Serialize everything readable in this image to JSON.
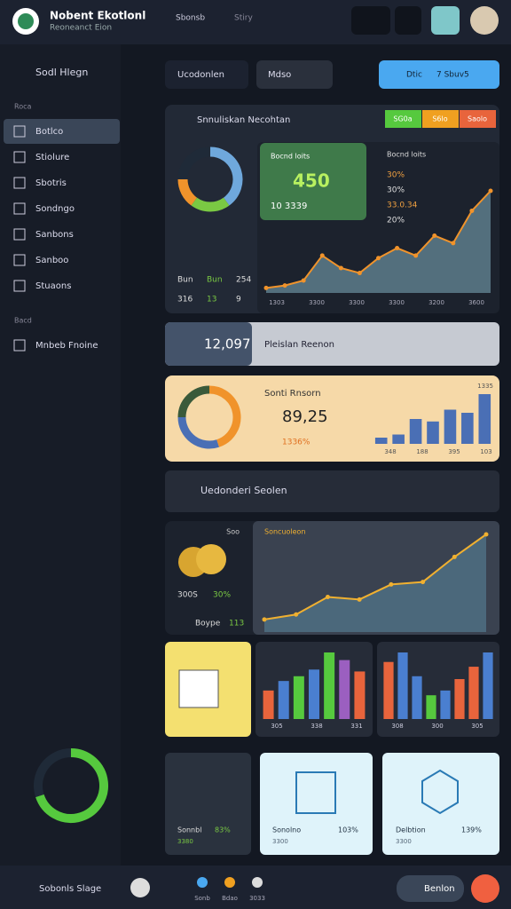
{
  "header": {
    "title": "Nobent Ekotlonl",
    "subtitle": "Reoneanct Eion",
    "nav": [
      "Sbonsb",
      "Stiry"
    ]
  },
  "sidebar": {
    "title": "Sodl Hlegn",
    "sections": [
      {
        "label": "Roca",
        "items": [
          "Botlco",
          "Stiolure",
          "Sbotris",
          "Sondngo",
          "Sanbons",
          "Sanboo",
          "Stuaons"
        ]
      },
      {
        "label": "Bacd",
        "items": [
          "Mnbeb Fnoine"
        ]
      }
    ],
    "donut": {
      "type": "pie",
      "values": [
        70,
        30
      ],
      "colors": [
        "#56c93e",
        "#1f2a38"
      ]
    }
  },
  "tabs": [
    "Ucodonlen",
    "Mdso"
  ],
  "action": [
    "Dtic",
    "7 Sbuv5"
  ],
  "overview": {
    "title": "Snnuliskan Necohtan",
    "chips": [
      "SG0a",
      "S6lo",
      "Saolo"
    ],
    "chip_colors": [
      "#56c93e",
      "#f0a020",
      "#e8643c"
    ],
    "stat": "450",
    "stat_sub": "10 3339",
    "list_title": "Bocnd loits",
    "list": [
      "30%",
      "30%",
      "33.0.34",
      "20%"
    ],
    "footer": [
      [
        "Bun",
        "Bun",
        "254"
      ],
      [
        "316",
        "13",
        "9"
      ]
    ],
    "donut": {
      "type": "pie",
      "values": [
        40,
        20,
        15,
        25
      ],
      "colors": [
        "#6fa8dc",
        "#7ac943",
        "#f0932b",
        "#1f2a38"
      ]
    },
    "chart": {
      "type": "area",
      "values": [
        4,
        6,
        10,
        30,
        20,
        16,
        28,
        36,
        30,
        46,
        40,
        66,
        82
      ],
      "color": "#f0932b",
      "fill": "#5d7d8c",
      "axis_labels": [
        "1303",
        "3300",
        "3300",
        "3300",
        "3200",
        "3600"
      ]
    }
  },
  "banner": {
    "value": "12,097",
    "label": "Pleislan Reenon"
  },
  "sales": {
    "title": "Sonti Rnsorn",
    "value": "89,25",
    "sub": "1336%",
    "corner": "1335",
    "donut": {
      "type": "pie",
      "values": [
        45,
        30,
        25
      ],
      "colors": [
        "#f0932b",
        "#4a6fb5",
        "#3a5a3a"
      ]
    },
    "bars": {
      "type": "bar",
      "values": [
        10,
        15,
        40,
        36,
        55,
        50,
        80
      ],
      "color": "#4a6fb5",
      "axis_labels": [
        "348",
        "188",
        "395",
        "103"
      ]
    }
  },
  "section": {
    "title": "Uedonderi Seolen"
  },
  "revenue": {
    "label": "Soo",
    "stats": [
      "300S",
      "30%"
    ],
    "foot": [
      "Boype",
      "113"
    ],
    "chart_title": "Soncuoleon",
    "chart": {
      "type": "area",
      "values": [
        10,
        14,
        28,
        26,
        38,
        40,
        60,
        78
      ],
      "color": "#f0b030",
      "fill": "#4f6f82"
    }
  },
  "tiles": [
    {
      "bars": {
        "type": "bar",
        "values": [
          30,
          40,
          45,
          52,
          70,
          62,
          50
        ],
        "colors": [
          "#e8643c",
          "#4a7fd0",
          "#56c93e",
          "#4a7fd0",
          "#56c93e",
          "#9b5fc0",
          "#e8643c"
        ]
      },
      "axis_labels": [
        "305",
        "338",
        "331"
      ]
    },
    {
      "bars": {
        "type": "bar",
        "values": [
          60,
          70,
          45,
          25,
          30,
          42,
          55,
          70
        ],
        "colors": [
          "#e8643c",
          "#4a7fd0",
          "#4a7fd0",
          "#56c93e",
          "#4a7fd0",
          "#e8643c",
          "#e8643c",
          "#4a7fd0"
        ]
      },
      "axis_labels": [
        "308",
        "300",
        "305"
      ]
    }
  ],
  "cards": [
    {
      "label": "Sonnbl",
      "value": "83%",
      "sub": "3380"
    },
    {
      "label": "Sonolno",
      "value": "103%",
      "sub": "3300"
    },
    {
      "label": "Delbtion",
      "value": "139%",
      "sub": "3300"
    }
  ],
  "footer": {
    "label": "Sobonls Slage",
    "icons": [
      "Sonb",
      "Bdao",
      "3033"
    ],
    "button": "Benlon"
  }
}
